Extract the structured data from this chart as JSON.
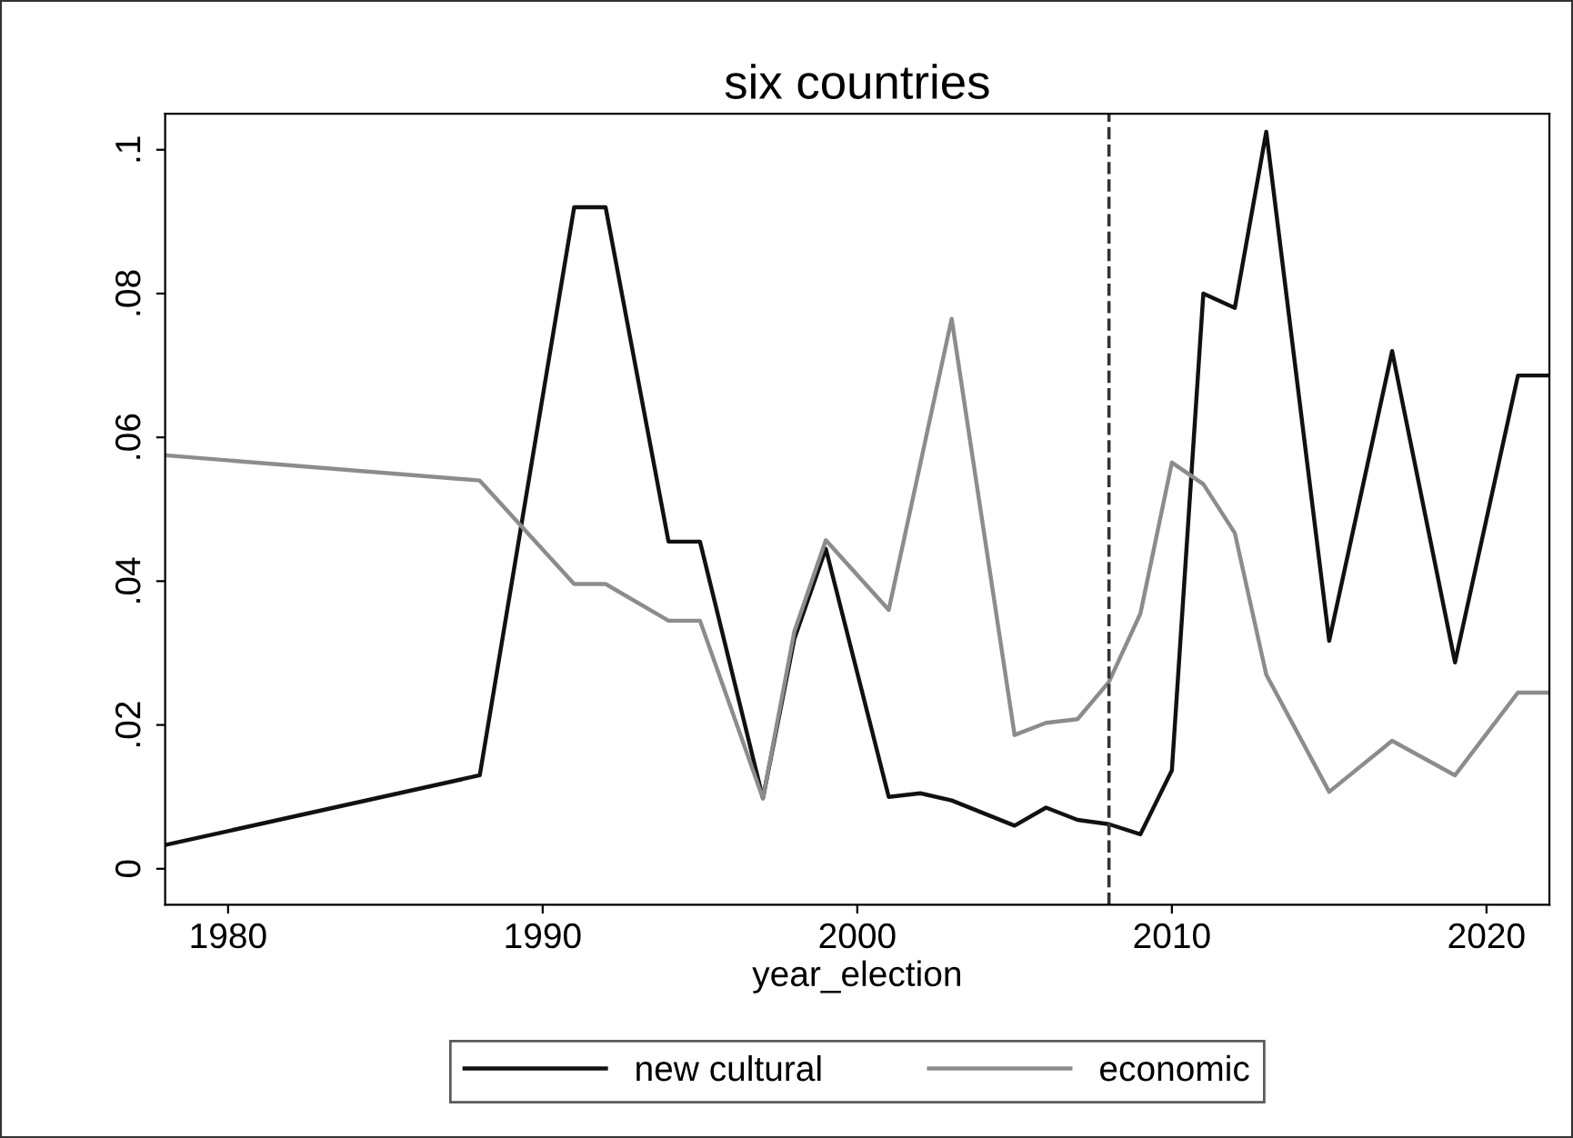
{
  "chart_data": {
    "type": "line",
    "title": "six countries",
    "xlabel": "year_election",
    "series": [
      {
        "name": "new cultural",
        "color": "#111111",
        "x": [
          1978,
          1988,
          1991,
          1992,
          1994,
          1995,
          1997,
          1998,
          1999,
          2001,
          2002,
          2003,
          2005,
          2006,
          2007,
          2008,
          2009,
          2010,
          2011,
          2012,
          2013,
          2015,
          2017,
          2019,
          2021,
          2022
        ],
        "values": [
          0.0033,
          0.013,
          0.092,
          0.092,
          0.0455,
          0.0455,
          0.0098,
          0.032,
          0.0445,
          0.01,
          0.0105,
          0.0095,
          0.006,
          0.0085,
          0.0068,
          0.0062,
          0.0048,
          0.0137,
          0.08,
          0.078,
          0.1025,
          0.0317,
          0.072,
          0.0287,
          0.0686,
          0.0686
        ]
      },
      {
        "name": "economic",
        "color": "#8c8c8c",
        "x": [
          1978,
          1988,
          1991,
          1992,
          1994,
          1995,
          1997,
          1998,
          1999,
          2001,
          2003,
          2005,
          2006,
          2007,
          2008,
          2009,
          2010,
          2011,
          2012,
          2013,
          2015,
          2017,
          2019,
          2021,
          2022
        ],
        "values": [
          0.0575,
          0.054,
          0.0396,
          0.0396,
          0.0345,
          0.0345,
          0.0098,
          0.033,
          0.0457,
          0.036,
          0.0765,
          0.0186,
          0.0203,
          0.0208,
          0.026,
          0.0355,
          0.0565,
          0.0535,
          0.0467,
          0.027,
          0.0107,
          0.0178,
          0.013,
          0.0245,
          0.0245
        ]
      }
    ],
    "xlim": [
      1978,
      2022
    ],
    "xticks": [
      1980,
      1990,
      2000,
      2010,
      2020
    ],
    "ylim": [
      -0.005,
      0.105
    ],
    "yticks": [
      0,
      {
        "value": 0.02,
        "label": ".02"
      },
      {
        "value": 0.04,
        "label": ".04"
      },
      {
        "value": 0.06,
        "label": ".06"
      },
      {
        "value": 0.08,
        "label": ".08"
      },
      {
        "value": 0.1,
        "label": ".1"
      }
    ],
    "ref_lines": [
      {
        "axis": "x",
        "value": 2008,
        "label": null,
        "color": "#333333",
        "line_style": "dashed"
      }
    ],
    "legend": "bottom",
    "grid": false,
    "marker": "none",
    "line_style": "solid"
  }
}
